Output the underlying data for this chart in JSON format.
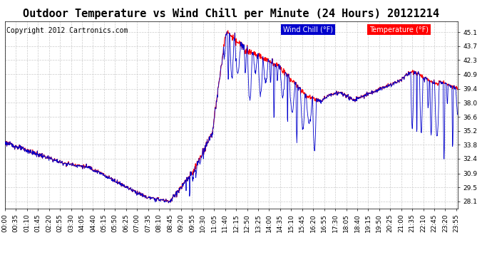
{
  "title": "Outdoor Temperature vs Wind Chill per Minute (24 Hours) 20121214",
  "copyright": "Copyright 2012 Cartronics.com",
  "legend_wind_chill": "Wind Chill (°F)",
  "legend_temperature": "Temperature (°F)",
  "yticks": [
    28.1,
    29.5,
    30.9,
    32.4,
    33.8,
    35.2,
    36.6,
    38.0,
    39.4,
    40.9,
    42.3,
    43.7,
    45.1
  ],
  "ylim": [
    27.4,
    46.2
  ],
  "bg_color": "#ffffff",
  "grid_color": "#cccccc",
  "temp_color": "#ff0000",
  "wind_color": "#0000cc",
  "wind_legend_bg": "#0000cc",
  "temp_legend_bg": "#ff0000",
  "title_fontsize": 11,
  "copyright_fontsize": 7,
  "tick_fontsize": 6.5,
  "xtick_interval_min": 35
}
